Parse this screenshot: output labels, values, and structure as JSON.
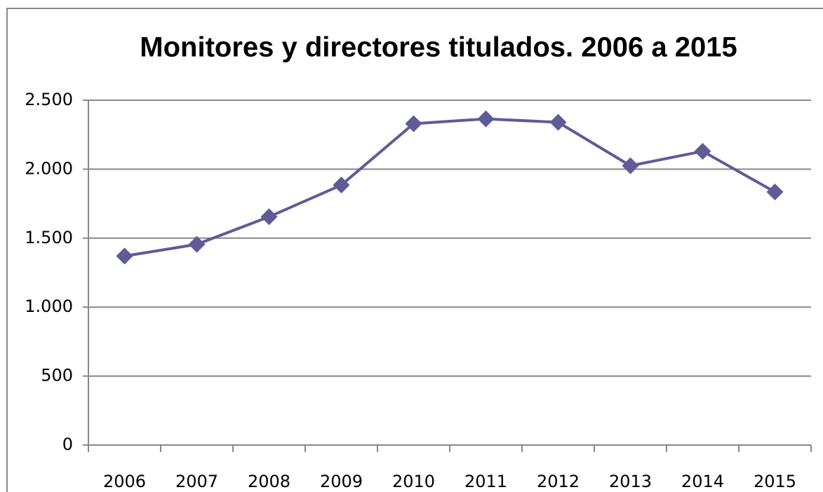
{
  "chart_data": {
    "type": "line",
    "title": "Monitores y directores titulados. 2006 a 2015",
    "categories": [
      "2006",
      "2007",
      "2008",
      "2009",
      "2010",
      "2011",
      "2012",
      "2013",
      "2014",
      "2015"
    ],
    "series": [
      {
        "color": "#5f5b97",
        "values": [
          1370,
          1455,
          1655,
          1885,
          2330,
          2365,
          2340,
          2025,
          2130,
          1835
        ]
      }
    ],
    "ylim": [
      0,
      2500
    ],
    "yticks": [
      0,
      500,
      {
        "value": 1000,
        "label": "1.000"
      },
      {
        "value": 1500,
        "label": "1.500"
      },
      {
        "value": 2000,
        "label": "2.000"
      },
      {
        "value": 2500,
        "label": "2.500"
      }
    ],
    "grid": true
  }
}
